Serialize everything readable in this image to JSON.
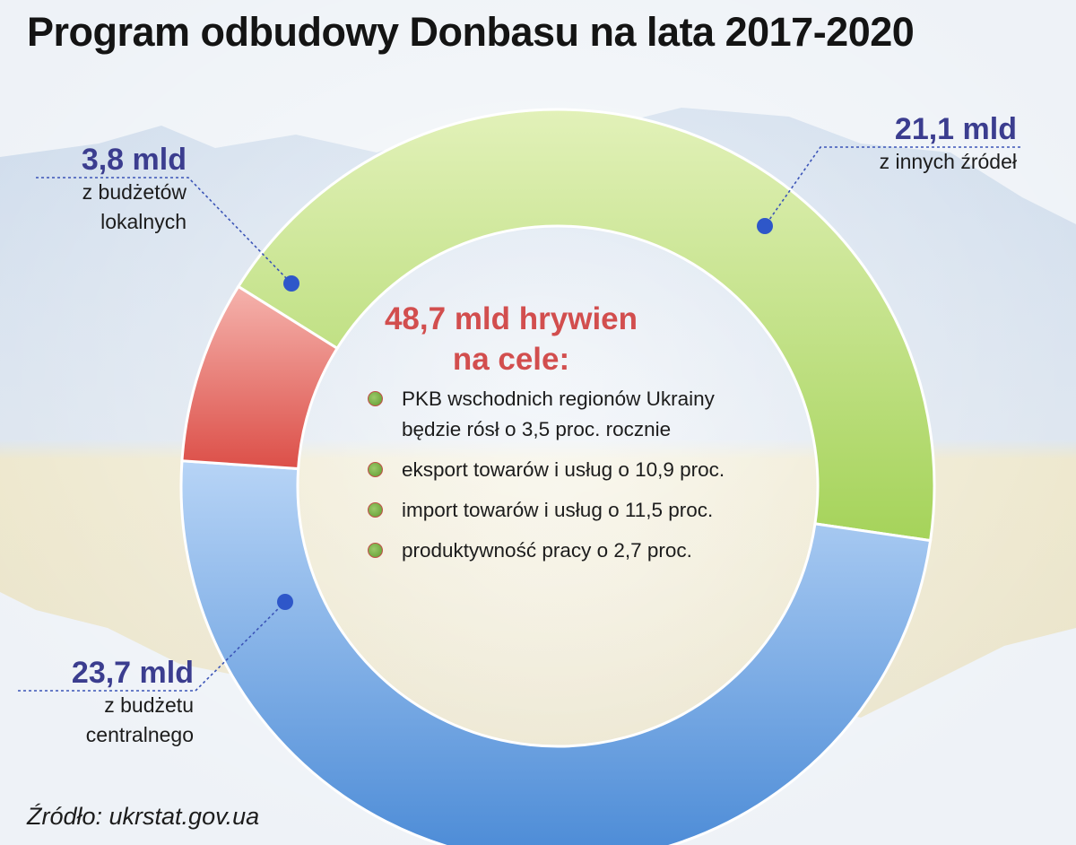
{
  "title": "Program odbudowy Donbasu na lata 2017-2020",
  "center": {
    "heading_line1": "48,7 mld hrywien",
    "heading_line2": "na cele:",
    "goals": [
      {
        "line1": "PKB wschodnich regionów Ukrainy",
        "line2": "będzie rósł o 3,5 proc. rocznie"
      },
      {
        "line1": "eksport towarów i usług o 10,9 proc.",
        "line2": ""
      },
      {
        "line1": "import towarów i usług o 11,5 proc.",
        "line2": ""
      },
      {
        "line1": "produktywność pracy o 2,7 proc.",
        "line2": ""
      }
    ]
  },
  "callouts": {
    "local": {
      "value": "3,8 mld",
      "line1": "z budżetów",
      "line2": "lokalnych"
    },
    "other": {
      "value": "21,1 mld",
      "line1": "z innych źródeł",
      "line2": ""
    },
    "central": {
      "value": "23,7 mld",
      "line1": "z budżetu",
      "line2": "centralnego"
    }
  },
  "source": "Źródło: ukrstat.gov.ua",
  "chart_data": {
    "type": "pie",
    "title": "Program odbudowy Donbasu na lata 2017-2020",
    "total_label": "48,7 mld hrywien",
    "slices": [
      {
        "label": "z innych źródeł",
        "value": 21.1,
        "display": "21,1 mld",
        "color": "#b5dc69"
      },
      {
        "label": "z budżetu centralnego",
        "value": 23.7,
        "display": "23,7 mld",
        "color": "#6b9fdf"
      },
      {
        "label": "z budżetów lokalnych",
        "value": 3.8,
        "display": "3,8 mld",
        "color": "#e8605a"
      }
    ]
  }
}
